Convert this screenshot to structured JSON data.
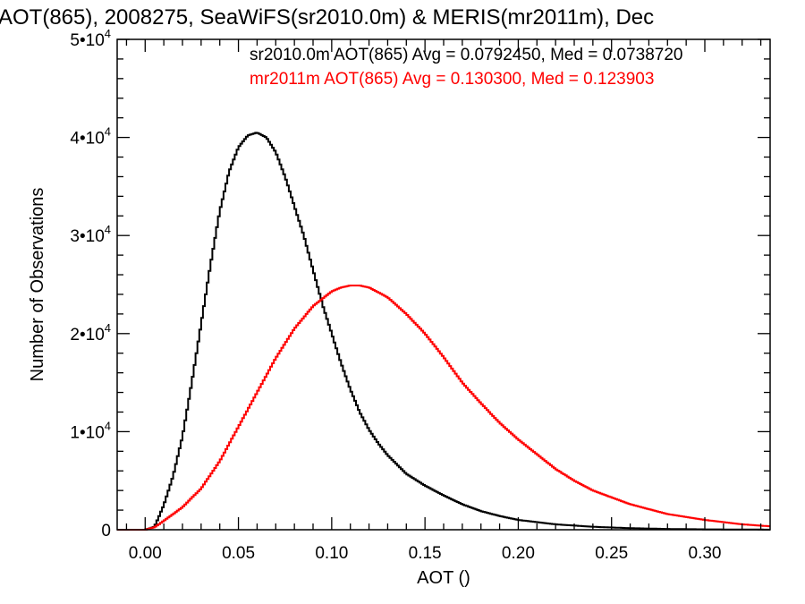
{
  "chart_data": {
    "type": "line",
    "title": "AOT(865), 2008275, SeaWiFS(sr2010.0m) & MERIS(mr2011m), Dec",
    "xlabel": "AOT ()",
    "ylabel": "Number of Observations",
    "xlim": [
      -0.015,
      0.335
    ],
    "ylim": [
      0,
      50000
    ],
    "x_ticks": [
      {
        "value": 0.0,
        "label": "0.00"
      },
      {
        "value": 0.05,
        "label": "0.05"
      },
      {
        "value": 0.1,
        "label": "0.10"
      },
      {
        "value": 0.15,
        "label": "0.15"
      },
      {
        "value": 0.2,
        "label": "0.20"
      },
      {
        "value": 0.25,
        "label": "0.25"
      },
      {
        "value": 0.3,
        "label": "0.30"
      }
    ],
    "y_ticks": [
      {
        "value": 0,
        "mant": "0",
        "exp": ""
      },
      {
        "value": 10000,
        "mant": "1•10",
        "exp": "4"
      },
      {
        "value": 20000,
        "mant": "2•10",
        "exp": "4"
      },
      {
        "value": 30000,
        "mant": "3•10",
        "exp": "4"
      },
      {
        "value": 40000,
        "mant": "4•10",
        "exp": "4"
      },
      {
        "value": 50000,
        "mant": "5•10",
        "exp": "4"
      }
    ],
    "grid": false,
    "legend_position": "top-right",
    "series": [
      {
        "name": "sr2010.0m AOT(865) Avg = 0.0792450, Med = 0.0738720",
        "color": "#000000",
        "style": "step",
        "x": [
          -0.015,
          0.0,
          0.005,
          0.01,
          0.015,
          0.02,
          0.025,
          0.03,
          0.035,
          0.04,
          0.045,
          0.05,
          0.055,
          0.06,
          0.065,
          0.07,
          0.075,
          0.08,
          0.085,
          0.09,
          0.095,
          0.1,
          0.105,
          0.11,
          0.115,
          0.12,
          0.125,
          0.13,
          0.14,
          0.15,
          0.16,
          0.17,
          0.18,
          0.19,
          0.2,
          0.22,
          0.24,
          0.26,
          0.28,
          0.3,
          0.335
        ],
        "y": [
          0,
          0,
          300,
          2500,
          5500,
          9500,
          15000,
          21000,
          27000,
          32500,
          36500,
          39000,
          40200,
          40500,
          40000,
          38500,
          36000,
          33000,
          30000,
          26500,
          23000,
          20000,
          17000,
          14300,
          12000,
          10200,
          8800,
          7600,
          5700,
          4500,
          3500,
          2600,
          1900,
          1400,
          1000,
          550,
          300,
          160,
          80,
          40,
          10
        ]
      },
      {
        "name": "mr2011m AOT(865) Avg = 0.130300, Med = 0.123903",
        "color": "#ff0000",
        "style": "step",
        "x": [
          -0.015,
          0.0,
          0.005,
          0.01,
          0.02,
          0.03,
          0.04,
          0.05,
          0.06,
          0.07,
          0.08,
          0.09,
          0.1,
          0.105,
          0.11,
          0.115,
          0.12,
          0.13,
          0.14,
          0.15,
          0.16,
          0.17,
          0.18,
          0.19,
          0.2,
          0.21,
          0.22,
          0.23,
          0.24,
          0.26,
          0.28,
          0.3,
          0.32,
          0.335
        ],
        "y": [
          0,
          0,
          250,
          900,
          2300,
          4200,
          7000,
          10500,
          14000,
          17500,
          20500,
          22800,
          24300,
          24700,
          24900,
          24900,
          24700,
          23700,
          22000,
          20000,
          17600,
          15000,
          12900,
          10900,
          9200,
          7700,
          6200,
          5000,
          4000,
          2600,
          1600,
          1000,
          550,
          350
        ]
      }
    ]
  }
}
